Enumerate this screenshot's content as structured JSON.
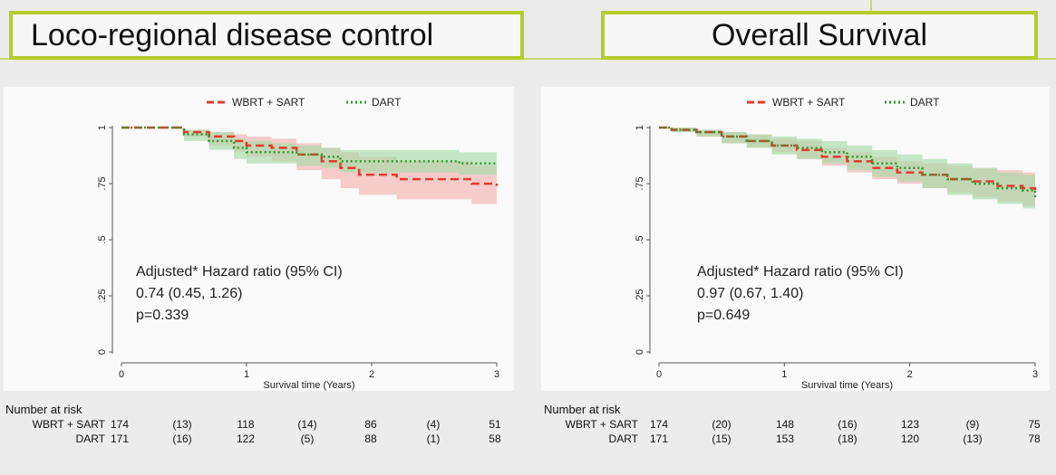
{
  "titles": {
    "left": "Loco-regional disease control",
    "right": "Overall Survival"
  },
  "chart_data": [
    {
      "type": "line",
      "title": "Loco-regional disease control",
      "xlabel": "Survival time (Years)",
      "ylabel": "",
      "xlim": [
        0,
        3
      ],
      "ylim": [
        0,
        1
      ],
      "x_ticks": [
        "0",
        "1",
        "2",
        "3"
      ],
      "y_ticks": [
        "0",
        ".25",
        ".5",
        ".75",
        "1"
      ],
      "legend": {
        "position": "top",
        "entries": [
          "WBRT + SART",
          "DART"
        ]
      },
      "series": [
        {
          "name": "WBRT + SART",
          "color": "#e03b2e",
          "band_color": "#f3b3b0",
          "x": [
            0,
            0.4,
            0.5,
            0.7,
            0.9,
            1.0,
            1.2,
            1.4,
            1.6,
            1.75,
            1.9,
            2.1,
            2.2,
            2.5,
            2.7,
            2.8,
            3.0
          ],
          "y": [
            1.0,
            1.0,
            0.98,
            0.96,
            0.94,
            0.92,
            0.91,
            0.88,
            0.85,
            0.82,
            0.79,
            0.79,
            0.77,
            0.77,
            0.77,
            0.75,
            0.74
          ],
          "lower": [
            1.0,
            1.0,
            0.96,
            0.92,
            0.89,
            0.87,
            0.85,
            0.81,
            0.77,
            0.73,
            0.7,
            0.7,
            0.68,
            0.68,
            0.68,
            0.66,
            0.65
          ],
          "upper": [
            1.0,
            1.0,
            0.99,
            0.98,
            0.97,
            0.96,
            0.95,
            0.93,
            0.91,
            0.89,
            0.87,
            0.87,
            0.85,
            0.85,
            0.85,
            0.83,
            0.82
          ]
        },
        {
          "name": "DART",
          "color": "#2e9a2e",
          "band_color": "#a8dca8",
          "x": [
            0,
            0.4,
            0.5,
            0.7,
            0.9,
            1.0,
            1.2,
            1.4,
            1.6,
            1.75,
            1.9,
            2.1,
            2.2,
            2.5,
            2.7,
            2.8,
            3.0
          ],
          "y": [
            1.0,
            1.0,
            0.97,
            0.94,
            0.91,
            0.89,
            0.89,
            0.88,
            0.87,
            0.85,
            0.85,
            0.85,
            0.85,
            0.85,
            0.84,
            0.84,
            0.84
          ],
          "lower": [
            1.0,
            1.0,
            0.94,
            0.9,
            0.86,
            0.84,
            0.84,
            0.83,
            0.82,
            0.8,
            0.8,
            0.8,
            0.8,
            0.8,
            0.79,
            0.79,
            0.79
          ],
          "upper": [
            1.0,
            1.0,
            0.99,
            0.98,
            0.95,
            0.94,
            0.93,
            0.92,
            0.91,
            0.9,
            0.9,
            0.9,
            0.9,
            0.9,
            0.89,
            0.89,
            0.89
          ]
        }
      ],
      "annotations": [
        "Adjusted* Hazard ratio (95% CI)",
        "0.74 (0.45, 1.26)",
        "p=0.339"
      ],
      "risk_table": {
        "header": "Number at risk",
        "rows": [
          {
            "label": "WBRT + SART",
            "values": [
              "174",
              "(13)",
              "118",
              "(14)",
              "86",
              "(4)",
              "51"
            ]
          },
          {
            "label": "DART",
            "values": [
              "171",
              "(16)",
              "122",
              "(5)",
              "88",
              "(1)",
              "58"
            ]
          }
        ]
      }
    },
    {
      "type": "line",
      "title": "Overall Survival",
      "xlabel": "Survival time (Years)",
      "ylabel": "",
      "xlim": [
        0,
        3
      ],
      "ylim": [
        0,
        1
      ],
      "x_ticks": [
        "0",
        "1",
        "2",
        "3"
      ],
      "y_ticks": [
        "0",
        ".25",
        ".5",
        ".75",
        "1"
      ],
      "legend": {
        "position": "top",
        "entries": [
          "WBRT + SART",
          "DART"
        ]
      },
      "series": [
        {
          "name": "WBRT + SART",
          "color": "#e03b2e",
          "band_color": "#f3b3b0",
          "x": [
            0,
            0.1,
            0.3,
            0.5,
            0.7,
            0.9,
            1.1,
            1.3,
            1.5,
            1.7,
            1.9,
            2.1,
            2.3,
            2.5,
            2.7,
            2.9,
            3.0
          ],
          "y": [
            1.0,
            0.99,
            0.98,
            0.96,
            0.94,
            0.92,
            0.9,
            0.87,
            0.85,
            0.82,
            0.8,
            0.79,
            0.77,
            0.76,
            0.74,
            0.73,
            0.72
          ],
          "lower": [
            1.0,
            0.98,
            0.96,
            0.93,
            0.91,
            0.89,
            0.86,
            0.83,
            0.8,
            0.77,
            0.75,
            0.73,
            0.71,
            0.69,
            0.67,
            0.65,
            0.64
          ],
          "upper": [
            1.0,
            1.0,
            0.99,
            0.98,
            0.97,
            0.95,
            0.94,
            0.91,
            0.89,
            0.87,
            0.85,
            0.84,
            0.83,
            0.82,
            0.81,
            0.8,
            0.79
          ]
        },
        {
          "name": "DART",
          "color": "#2e9a2e",
          "band_color": "#a8dca8",
          "x": [
            0,
            0.1,
            0.3,
            0.5,
            0.7,
            0.9,
            1.1,
            1.3,
            1.5,
            1.7,
            1.9,
            2.1,
            2.3,
            2.5,
            2.7,
            2.9,
            3.0
          ],
          "y": [
            1.0,
            0.99,
            0.98,
            0.96,
            0.94,
            0.92,
            0.91,
            0.89,
            0.87,
            0.84,
            0.82,
            0.79,
            0.77,
            0.75,
            0.73,
            0.72,
            0.69
          ],
          "lower": [
            1.0,
            0.98,
            0.96,
            0.93,
            0.91,
            0.88,
            0.86,
            0.84,
            0.81,
            0.78,
            0.76,
            0.73,
            0.7,
            0.68,
            0.66,
            0.64,
            0.6
          ],
          "upper": [
            1.0,
            1.0,
            0.99,
            0.98,
            0.97,
            0.96,
            0.95,
            0.94,
            0.92,
            0.9,
            0.88,
            0.86,
            0.84,
            0.82,
            0.8,
            0.79,
            0.77
          ]
        }
      ],
      "annotations": [
        "Adjusted* Hazard ratio (95% CI)",
        "0.97 (0.67, 1.40)",
        "p=0.649"
      ],
      "risk_table": {
        "header": "Number at risk",
        "rows": [
          {
            "label": "WBRT + SART",
            "values": [
              "174",
              "(20)",
              "148",
              "(16)",
              "123",
              "(9)",
              "75"
            ]
          },
          {
            "label": "DART",
            "values": [
              "171",
              "(15)",
              "153",
              "(18)",
              "120",
              "(13)",
              "78"
            ]
          }
        ]
      }
    }
  ]
}
